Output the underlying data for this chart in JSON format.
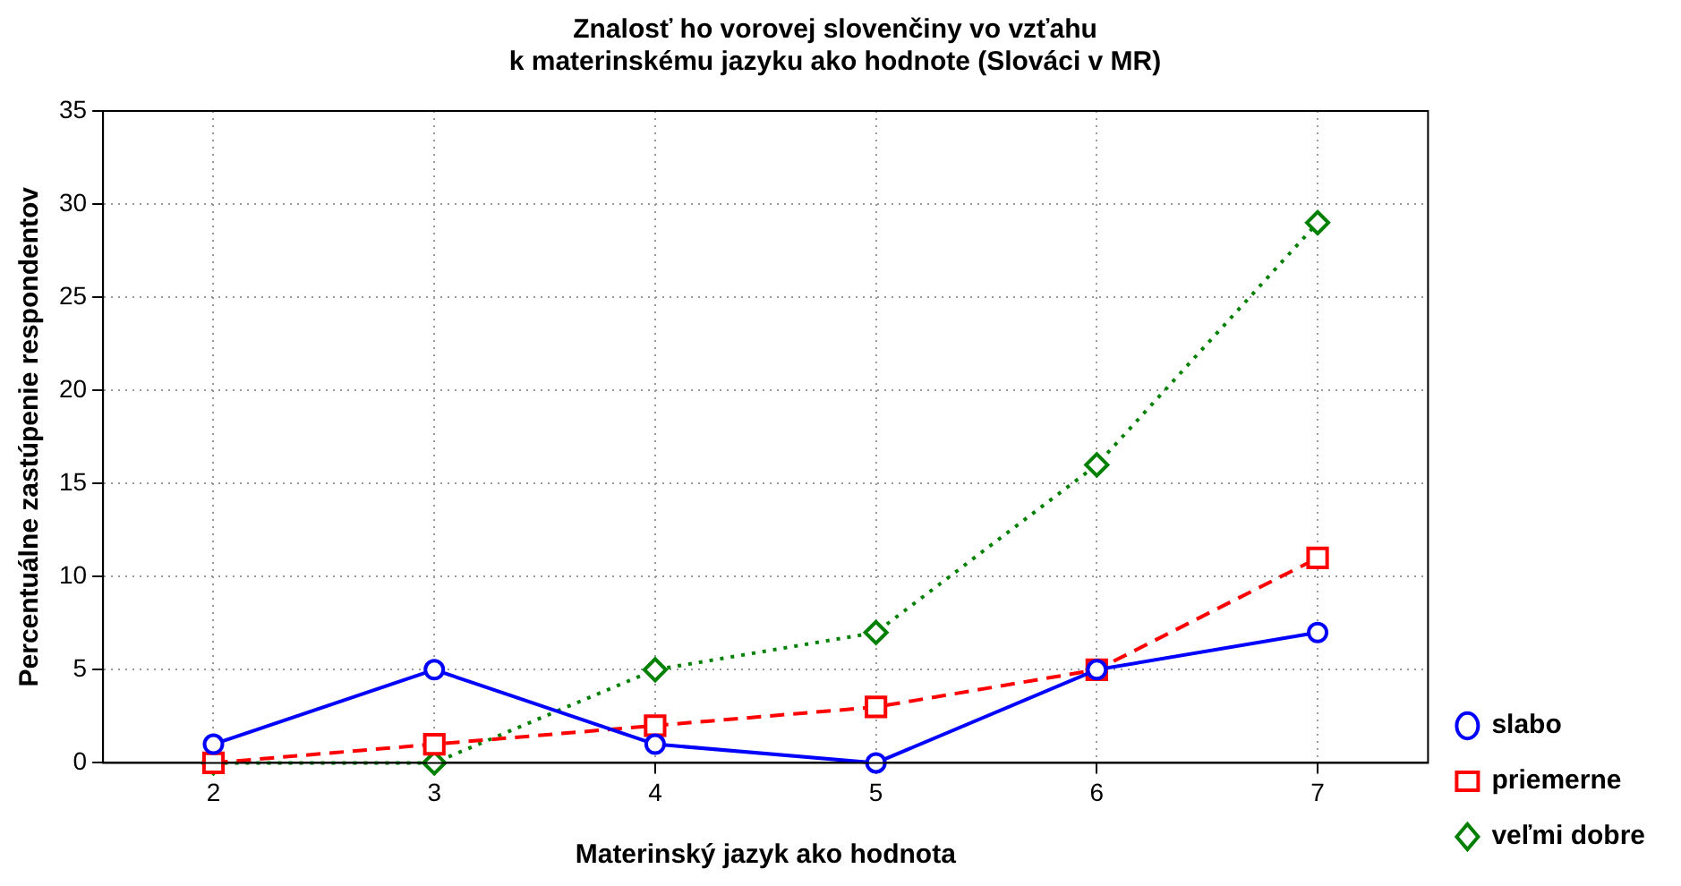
{
  "chart_data": {
    "type": "line",
    "title": "Znalosť ho vorovej slovenčiny vo vzťahu\nk materinskému jazyku ako hodnote (Slováci v MR)",
    "xlabel": "Materinský jazyk ako hodnota",
    "ylabel": "Percentuálne zastúpenie respondentov",
    "x": [
      2,
      3,
      4,
      5,
      6,
      7
    ],
    "series": [
      {
        "name": "slabo",
        "color": "#0000ff",
        "values": [
          1,
          5,
          1,
          0,
          5,
          7
        ],
        "marker": "circle",
        "line_style": "solid"
      },
      {
        "name": "priemerne",
        "color": "#ff0000",
        "values": [
          0,
          1,
          2,
          3,
          5,
          11
        ],
        "marker": "square",
        "line_style": "dashed"
      },
      {
        "name": "veľmi dobre",
        "color": "#008000",
        "values": [
          0,
          0,
          5,
          7,
          16,
          29
        ],
        "marker": "diamond",
        "line_style": "dotted"
      }
    ],
    "xlim": [
      1.5,
      7.5
    ],
    "xticks": [
      2,
      3,
      4,
      5,
      6,
      7
    ],
    "ylim": [
      0,
      35
    ],
    "yticks": [
      0,
      5,
      10,
      15,
      20,
      25,
      30,
      35
    ],
    "grid": true,
    "legend": "right"
  }
}
